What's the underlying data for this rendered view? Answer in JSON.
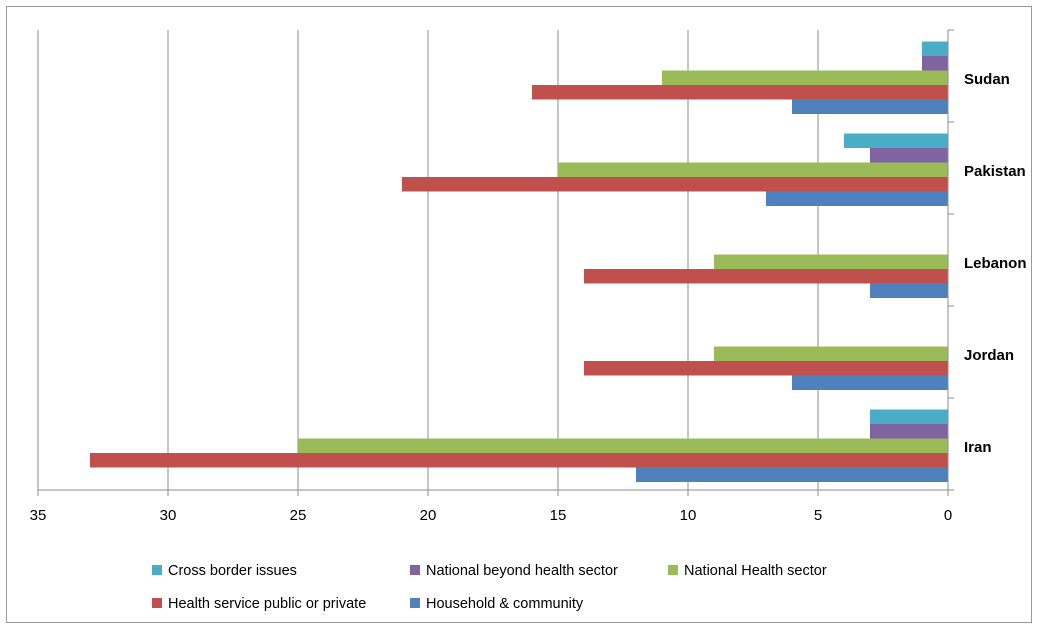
{
  "chart_data": {
    "type": "bar",
    "orientation": "horizontal",
    "x_reversed": true,
    "categories": [
      "Iran",
      "Jordan",
      "Lebanon",
      "Pakistan",
      "Sudan"
    ],
    "series": [
      {
        "name": "Cross border issues",
        "color": "#4bacc6",
        "values": [
          3,
          0,
          0,
          4,
          1
        ]
      },
      {
        "name": "National beyond health sector",
        "color": "#8064a2",
        "values": [
          3,
          0,
          0,
          3,
          1
        ]
      },
      {
        "name": "National Health sector",
        "color": "#9bbb59",
        "values": [
          25,
          9,
          9,
          15,
          11
        ]
      },
      {
        "name": "Health service public or private",
        "color": "#c0504d",
        "values": [
          33,
          14,
          14,
          21,
          16
        ]
      },
      {
        "name": "Household & community",
        "color": "#4f81bd",
        "values": [
          12,
          6,
          3,
          7,
          6
        ]
      }
    ],
    "xlim": [
      0,
      35
    ],
    "x_ticks": [
      "35",
      "30",
      "25",
      "20",
      "15",
      "10",
      "5",
      "0"
    ],
    "grid": true,
    "legend_position": "bottom"
  }
}
